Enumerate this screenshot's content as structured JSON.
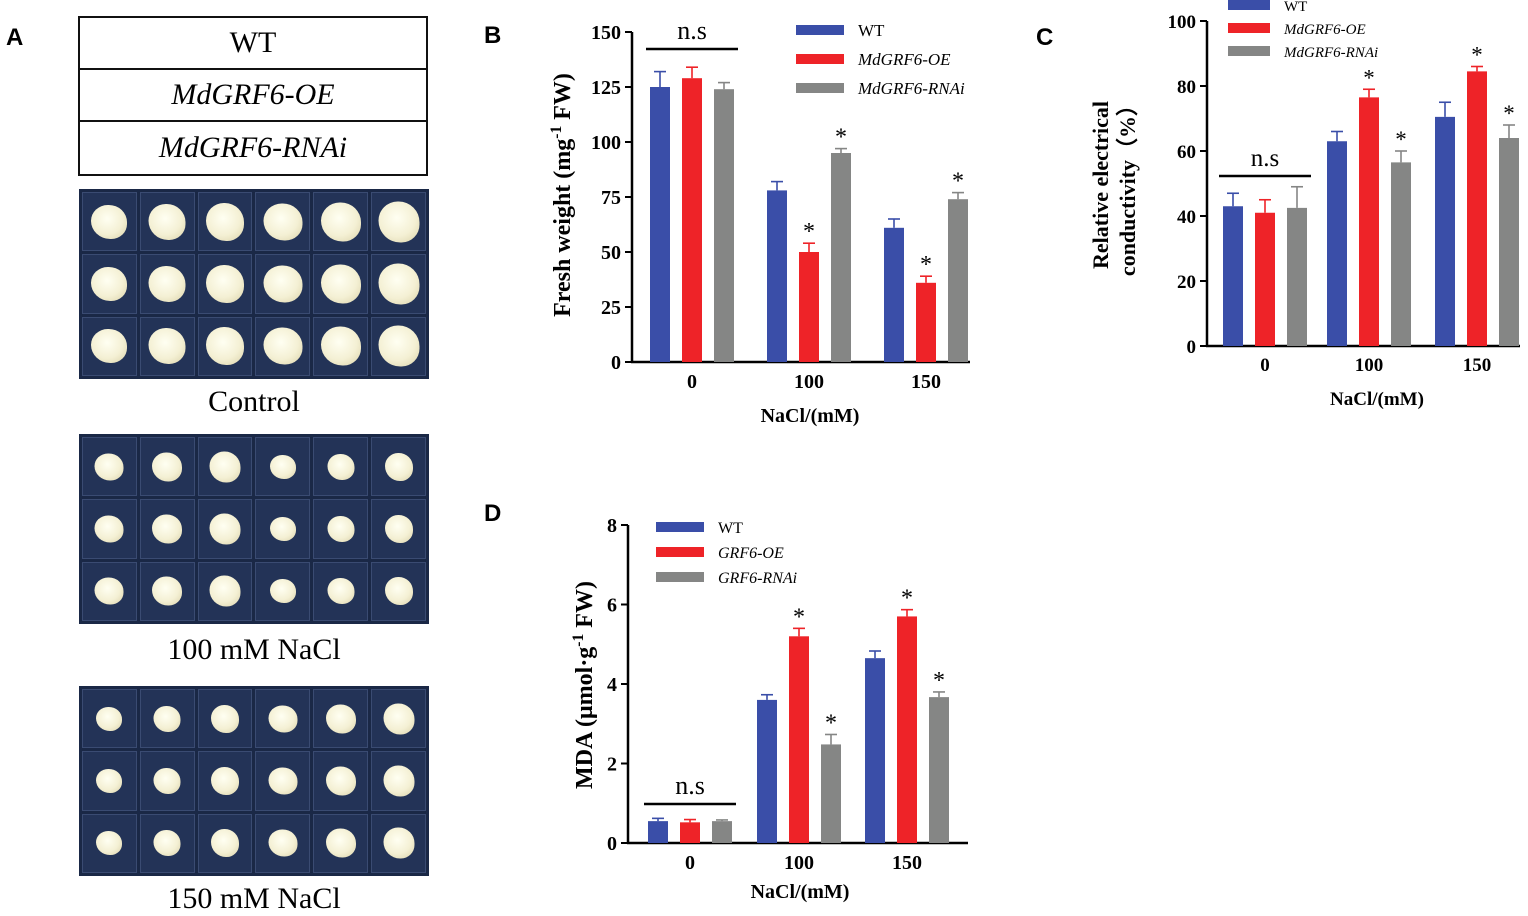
{
  "panels": {
    "a": "A",
    "b": "B",
    "c": "C",
    "d": "D"
  },
  "panel_a": {
    "genotypes": [
      "WT",
      "MdGRF6-OE",
      "MdGRF6-RNAi"
    ],
    "plates": [
      {
        "label": "Control",
        "size": "large"
      },
      {
        "label": "100 mM NaCl",
        "size": "medium"
      },
      {
        "label": "150 mM NaCl",
        "size": "medium"
      }
    ]
  },
  "colors": {
    "wt": "#3a4ea8",
    "oe": "#ee2328",
    "rnai": "#858685"
  },
  "chart_data": [
    {
      "id": "B",
      "type": "bar",
      "categories": [
        "0",
        "100",
        "150"
      ],
      "series": [
        {
          "name": "WT",
          "values": [
            125,
            78,
            61
          ],
          "errors": [
            7,
            4,
            4
          ],
          "sig": [
            "",
            "",
            ""
          ]
        },
        {
          "name": "MdGRF6-OE",
          "values": [
            129,
            50,
            36
          ],
          "errors": [
            5,
            4,
            3
          ],
          "sig": [
            "",
            "*",
            "*"
          ]
        },
        {
          "name": "MdGRF6-RNAi",
          "values": [
            124,
            95,
            74
          ],
          "errors": [
            3,
            2,
            3
          ],
          "sig": [
            "",
            "*",
            "*"
          ]
        }
      ],
      "ns_label": "n.s",
      "ylim": [
        0,
        150
      ],
      "yticks": [
        0,
        25,
        50,
        75,
        100,
        125,
        150
      ],
      "xlabel": "NaCl/(mM)",
      "ylabel_main": "Fresh weight (mg",
      "ylabel_sup": "-1",
      "ylabel_tail": " FW)"
    },
    {
      "id": "C",
      "type": "bar",
      "categories": [
        "0",
        "100",
        "150"
      ],
      "series": [
        {
          "name": "WT",
          "values": [
            43,
            63,
            70.5
          ],
          "errors": [
            4,
            3,
            4.5
          ],
          "sig": [
            "",
            "",
            ""
          ]
        },
        {
          "name": "MdGRF6-OE",
          "values": [
            41,
            76.5,
            84.5
          ],
          "errors": [
            4,
            2.5,
            1.5
          ],
          "sig": [
            "",
            "*",
            "*"
          ]
        },
        {
          "name": "MdGRF6-RNAi",
          "values": [
            42.5,
            56.5,
            64
          ],
          "errors": [
            6.5,
            3.5,
            4
          ],
          "sig": [
            "",
            "*",
            "*"
          ]
        }
      ],
      "ns_label": "n.s",
      "ylim": [
        0,
        100
      ],
      "yticks": [
        0,
        20,
        40,
        60,
        80,
        100
      ],
      "xlabel": "NaCl/(mM)",
      "ylabel_line1": "Relative electrical",
      "ylabel_line2": "conductivity（%）"
    },
    {
      "id": "D",
      "type": "bar",
      "categories": [
        "0",
        "100",
        "150"
      ],
      "series": [
        {
          "name": "WT",
          "values": [
            0.55,
            3.6,
            4.65
          ],
          "errors": [
            0.07,
            0.13,
            0.18
          ],
          "sig": [
            "",
            "",
            ""
          ]
        },
        {
          "name": "GRF6-OE",
          "values": [
            0.52,
            5.2,
            5.7
          ],
          "errors": [
            0.07,
            0.2,
            0.17
          ],
          "sig": [
            "",
            "*",
            "*"
          ]
        },
        {
          "name": "GRF6-RNAi",
          "values": [
            0.55,
            2.48,
            3.67
          ],
          "errors": [
            0.03,
            0.25,
            0.13
          ],
          "sig": [
            "",
            "*",
            "*"
          ]
        }
      ],
      "ns_label": "n.s",
      "ylim": [
        0,
        8
      ],
      "yticks": [
        0,
        2,
        4,
        6,
        8
      ],
      "xlabel": "NaCl/(mM)",
      "ylabel_main": "MDA (μmol·g",
      "ylabel_sup": "-1",
      "ylabel_tail": " FW)"
    }
  ]
}
